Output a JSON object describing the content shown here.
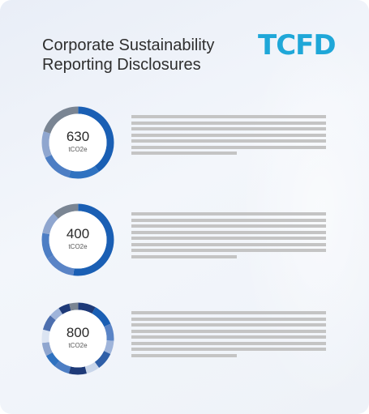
{
  "document": {
    "title_line1": "Corporate Sustainability",
    "title_line2": "Reporting Disclosures",
    "logo_text": "TCFD"
  },
  "colors": {
    "logo": "#1fa7d8",
    "text_placeholder": "#c4c4c4"
  },
  "disclosures": [
    {
      "value": "630",
      "unit": "tCO2e",
      "segments": [
        {
          "fraction": 0.4,
          "color": "#1a5fb4"
        },
        {
          "fraction": 0.14,
          "color": "#2f72c0"
        },
        {
          "fraction": 0.14,
          "color": "#4d7ec4"
        },
        {
          "fraction": 0.12,
          "color": "#8fa6cf"
        },
        {
          "fraction": 0.2,
          "color": "#7a8593"
        }
      ],
      "placeholder_lines": 7
    },
    {
      "value": "400",
      "unit": "tCO2e",
      "segments": [
        {
          "fraction": 0.52,
          "color": "#1a5fb4"
        },
        {
          "fraction": 0.14,
          "color": "#5a84c6"
        },
        {
          "fraction": 0.12,
          "color": "#4d7ec4"
        },
        {
          "fraction": 0.1,
          "color": "#8fa6cf"
        },
        {
          "fraction": 0.12,
          "color": "#7a8593"
        }
      ],
      "placeholder_lines": 8
    },
    {
      "value": "800",
      "unit": "tCO2e",
      "segments": [
        {
          "fraction": 0.08,
          "color": "#1e3a78"
        },
        {
          "fraction": 0.1,
          "color": "#1a5fb4"
        },
        {
          "fraction": 0.08,
          "color": "#5a84c6"
        },
        {
          "fraction": 0.06,
          "color": "#9fb4da"
        },
        {
          "fraction": 0.08,
          "color": "#2f5fa8"
        },
        {
          "fraction": 0.06,
          "color": "#c9d6ea"
        },
        {
          "fraction": 0.08,
          "color": "#1e3a78"
        },
        {
          "fraction": 0.07,
          "color": "#4d7ec4"
        },
        {
          "fraction": 0.06,
          "color": "#2f72c0"
        },
        {
          "fraction": 0.06,
          "color": "#8fa6cf"
        },
        {
          "fraction": 0.06,
          "color": "#dbe4f2"
        },
        {
          "fraction": 0.07,
          "color": "#4d6fae"
        },
        {
          "fraction": 0.05,
          "color": "#9fb4da"
        },
        {
          "fraction": 0.05,
          "color": "#1e3a78"
        },
        {
          "fraction": 0.04,
          "color": "#7a8593"
        }
      ],
      "placeholder_lines": 8
    }
  ]
}
